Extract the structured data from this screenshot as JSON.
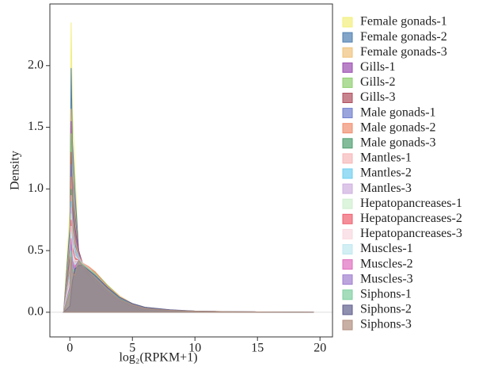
{
  "chart_data": {
    "type": "density",
    "xlabel": "log₂(RPKM+1)",
    "ylabel": "Density",
    "xlim": [
      -1.6,
      21
    ],
    "ylim": [
      -0.2,
      2.5
    ],
    "xticks": [
      0,
      5,
      10,
      15,
      20
    ],
    "yticks": [
      {
        "value": 0,
        "label": "0.0"
      },
      0.5,
      {
        "value": 1,
        "label": "1.0"
      },
      1.5,
      {
        "value": 2,
        "label": "2.0"
      }
    ],
    "x": [
      -0.5,
      0,
      0.1,
      0.2,
      0.4,
      0.7,
      1,
      1.5,
      2,
      3,
      4,
      5,
      6,
      8,
      10,
      13,
      16,
      19.5
    ],
    "series": [
      {
        "name": "Female gonads-1",
        "color": "#f2ef7a",
        "values": [
          0,
          0.82,
          2.35,
          1.65,
          1.16,
          0.5,
          0.4,
          0.33,
          0.28,
          0.18,
          0.1,
          0.06,
          0.03,
          0.015,
          0.008,
          0.004,
          0.002,
          0
        ]
      },
      {
        "name": "Female gonads-2",
        "color": "#4f7fb0",
        "values": [
          0,
          0.69,
          1.98,
          1.39,
          0.99,
          0.5,
          0.38,
          0.32,
          0.27,
          0.17,
          0.1,
          0.06,
          0.03,
          0.015,
          0.008,
          0.004,
          0.002,
          0
        ]
      },
      {
        "name": "Female gonads-3",
        "color": "#f0c27a",
        "values": [
          0,
          0.58,
          1.65,
          1.16,
          0.84,
          0.48,
          0.4,
          0.36,
          0.32,
          0.22,
          0.13,
          0.07,
          0.04,
          0.018,
          0.009,
          0.004,
          0.002,
          0
        ]
      },
      {
        "name": "Gills-1",
        "color": "#9b4fb0",
        "values": [
          0,
          0.54,
          1.55,
          1.09,
          0.8,
          0.5,
          0.4,
          0.33,
          0.28,
          0.18,
          0.1,
          0.06,
          0.03,
          0.015,
          0.008,
          0.004,
          0.002,
          0
        ]
      },
      {
        "name": "Gills-2",
        "color": "#8fcf6f",
        "values": [
          0,
          0.51,
          1.45,
          1.02,
          0.75,
          0.47,
          0.38,
          0.35,
          0.33,
          0.22,
          0.12,
          0.07,
          0.04,
          0.018,
          0.009,
          0.004,
          0.002,
          0
        ]
      },
      {
        "name": "Gills-3",
        "color": "#b05060",
        "values": [
          0,
          0.46,
          1.3,
          0.91,
          0.69,
          0.5,
          0.4,
          0.33,
          0.28,
          0.18,
          0.1,
          0.06,
          0.03,
          0.015,
          0.008,
          0.004,
          0.002,
          0
        ]
      },
      {
        "name": "Male gonads-1",
        "color": "#6f7fcf",
        "values": [
          0,
          0.42,
          1.2,
          0.84,
          0.64,
          0.48,
          0.39,
          0.32,
          0.27,
          0.17,
          0.1,
          0.06,
          0.03,
          0.015,
          0.008,
          0.004,
          0.002,
          0
        ]
      },
      {
        "name": "Male gonads-2",
        "color": "#f08f6f",
        "values": [
          0,
          0.39,
          1.1,
          0.77,
          0.6,
          0.46,
          0.4,
          0.37,
          0.33,
          0.21,
          0.12,
          0.07,
          0.04,
          0.018,
          0.009,
          0.004,
          0.002,
          0
        ]
      },
      {
        "name": "Male gonads-3",
        "color": "#4f9f6f",
        "values": [
          0,
          0.35,
          1.0,
          0.7,
          0.55,
          0.45,
          0.4,
          0.35,
          0.3,
          0.19,
          0.11,
          0.06,
          0.03,
          0.015,
          0.008,
          0.004,
          0.002,
          0
        ]
      },
      {
        "name": "Mantles-1",
        "color": "#f7b8b8",
        "values": [
          0,
          0.33,
          0.95,
          0.67,
          0.53,
          0.45,
          0.4,
          0.36,
          0.31,
          0.2,
          0.11,
          0.06,
          0.03,
          0.015,
          0.008,
          0.004,
          0.002,
          0
        ]
      },
      {
        "name": "Mantles-2",
        "color": "#6fcfef",
        "values": [
          0,
          0.32,
          0.9,
          0.63,
          0.51,
          0.44,
          0.38,
          0.31,
          0.26,
          0.17,
          0.1,
          0.06,
          0.03,
          0.015,
          0.008,
          0.004,
          0.002,
          0
        ]
      },
      {
        "name": "Mantles-3",
        "color": "#cfafe0",
        "values": [
          0,
          0.3,
          0.85,
          0.6,
          0.48,
          0.43,
          0.38,
          0.33,
          0.29,
          0.19,
          0.11,
          0.06,
          0.03,
          0.015,
          0.008,
          0.004,
          0.002,
          0
        ]
      },
      {
        "name": "Hepatopancreases-1",
        "color": "#cfefcf",
        "values": [
          0,
          0.28,
          0.8,
          0.56,
          0.46,
          0.42,
          0.38,
          0.34,
          0.3,
          0.2,
          0.12,
          0.07,
          0.04,
          0.018,
          0.009,
          0.004,
          0.002,
          0
        ]
      },
      {
        "name": "Hepatopancreases-2",
        "color": "#ef5f6f",
        "values": [
          0,
          0.26,
          0.75,
          0.53,
          0.44,
          0.42,
          0.38,
          0.32,
          0.27,
          0.17,
          0.1,
          0.06,
          0.03,
          0.015,
          0.008,
          0.004,
          0.002,
          0
        ]
      },
      {
        "name": "Hepatopancreases-3",
        "color": "#f9d8df",
        "values": [
          0,
          0.25,
          0.7,
          0.49,
          0.42,
          0.42,
          0.38,
          0.34,
          0.3,
          0.2,
          0.11,
          0.06,
          0.03,
          0.015,
          0.008,
          0.004,
          0.002,
          0
        ]
      },
      {
        "name": "Muscles-1",
        "color": "#bfe8f0",
        "values": [
          0,
          0.23,
          0.65,
          0.46,
          0.39,
          0.42,
          0.39,
          0.33,
          0.28,
          0.18,
          0.1,
          0.06,
          0.03,
          0.015,
          0.008,
          0.004,
          0.002,
          0
        ]
      },
      {
        "name": "Muscles-2",
        "color": "#df6fbf",
        "values": [
          0,
          0.21,
          0.6,
          0.42,
          0.37,
          0.42,
          0.38,
          0.3,
          0.24,
          0.15,
          0.09,
          0.05,
          0.03,
          0.015,
          0.008,
          0.004,
          0.002,
          0
        ]
      },
      {
        "name": "Muscles-3",
        "color": "#9f7fcf",
        "values": [
          0,
          0.19,
          0.55,
          0.39,
          0.35,
          0.42,
          0.38,
          0.32,
          0.27,
          0.17,
          0.1,
          0.06,
          0.03,
          0.015,
          0.008,
          0.004,
          0.002,
          0
        ]
      },
      {
        "name": "Siphons-1",
        "color": "#7fcf9f",
        "values": [
          0,
          0.18,
          0.5,
          0.35,
          0.33,
          0.42,
          0.39,
          0.35,
          0.31,
          0.2,
          0.11,
          0.06,
          0.03,
          0.015,
          0.008,
          0.004,
          0.002,
          0
        ]
      },
      {
        "name": "Siphons-2",
        "color": "#5f5f8f",
        "values": [
          0,
          0.05,
          0.15,
          0.25,
          0.35,
          0.38,
          0.38,
          0.34,
          0.3,
          0.2,
          0.12,
          0.07,
          0.04,
          0.02,
          0.01,
          0.004,
          0.002,
          0
        ]
      },
      {
        "name": "Siphons-3",
        "color": "#b08f7f",
        "values": [
          0,
          0.16,
          0.45,
          0.32,
          0.3,
          0.42,
          0.38,
          0.33,
          0.28,
          0.18,
          0.1,
          0.06,
          0.03,
          0.015,
          0.008,
          0.004,
          0.002,
          0
        ]
      }
    ]
  }
}
